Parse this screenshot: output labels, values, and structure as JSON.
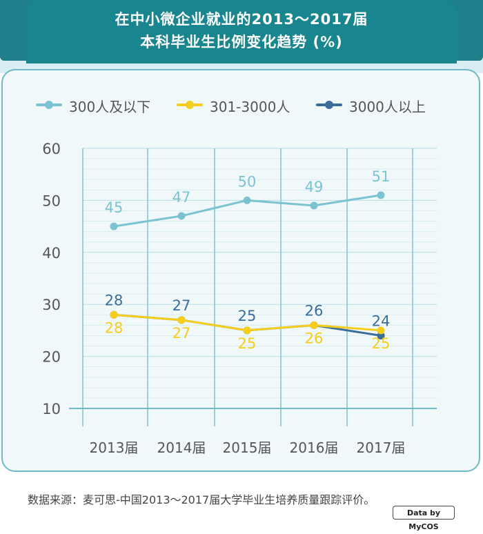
{
  "title": {
    "line1": "在中小微企业就业的2013～2017届",
    "line2": "本科毕业生比例变化趋势 (%)"
  },
  "colors": {
    "banner": "#1f7f8a",
    "panel_bg": "#f0f8fa",
    "series_small": "#7cc3d1",
    "series_mid": "#f5cd1a",
    "series_large": "#3a6d99"
  },
  "chart_data": {
    "type": "line",
    "categories": [
      "2013届",
      "2014届",
      "2015届",
      "2016届",
      "2017届"
    ],
    "series": [
      {
        "name": "300人及以下",
        "values": [
          45,
          47,
          50,
          49,
          51
        ],
        "color": "#7cc3d1"
      },
      {
        "name": "301-3000人",
        "values": [
          28,
          27,
          25,
          26,
          25
        ],
        "color": "#f5cd1a"
      },
      {
        "name": "3000人以上",
        "values": [
          28,
          27,
          25,
          26,
          24
        ],
        "color": "#3a6d99"
      }
    ],
    "ylim": [
      10,
      60
    ],
    "yticks": [
      10,
      20,
      30,
      40,
      50,
      60
    ],
    "grid": true,
    "legend_position": "top"
  },
  "footer": {
    "source": "数据来源：麦可思-中国2013～2017届大学毕业生培养质量跟踪评价。",
    "badge": "Data by MyCOS"
  }
}
